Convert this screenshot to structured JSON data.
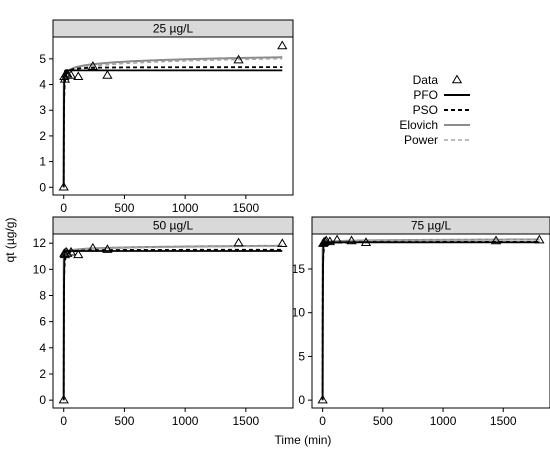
{
  "figure": {
    "xlabel": "Time (min)",
    "ylabel": "qt (µg/g)"
  },
  "legend": {
    "items": [
      {
        "label": "Data",
        "style": "triangle"
      },
      {
        "label": "PFO",
        "style": "solid-black"
      },
      {
        "label": "PSO",
        "style": "dashed-black"
      },
      {
        "label": "Elovich",
        "style": "solid-gray"
      },
      {
        "label": "Power",
        "style": "dashed-gray"
      }
    ]
  },
  "colors": {
    "pfo": "#000000",
    "pso": "#000000",
    "elovich": "#8c8c8c",
    "power": "#a6a6a6",
    "strip_fill": "#d9d9d9",
    "data_marker": "#000000"
  },
  "chart_data": [
    {
      "type": "scatter",
      "panel": "25 µg/L",
      "x": [
        0,
        5,
        10,
        20,
        30,
        60,
        120,
        240,
        360,
        1440,
        1800
      ],
      "y": [
        0,
        4.3,
        4.2,
        4.4,
        4.4,
        4.35,
        4.3,
        4.7,
        4.35,
        4.95,
        5.5
      ],
      "xlim": [
        -80,
        1880
      ],
      "ylim": [
        -0.3,
        5.85
      ],
      "xticks": [
        0,
        500,
        1000,
        1500
      ],
      "yticks": [
        0,
        1,
        2,
        3,
        4,
        5
      ],
      "models": {
        "PFO": {
          "qe": 4.55,
          "k": 0.5
        },
        "PSO": {
          "qe": 4.68,
          "k": 0.15
        },
        "Elovich": {
          "a": 4.05,
          "b": 0.135
        },
        "Power": {
          "a": 4.0,
          "b": 0.03
        }
      },
      "show_x_tick_labels": true
    },
    {
      "type": "scatter",
      "panel": "50 µg/L",
      "x": [
        0,
        5,
        10,
        20,
        30,
        60,
        120,
        240,
        360,
        1440,
        1800
      ],
      "y": [
        0,
        11.2,
        11.1,
        11.3,
        11.2,
        11.3,
        11.1,
        11.6,
        11.5,
        12.0,
        11.95
      ],
      "xlim": [
        -80,
        1880
      ],
      "ylim": [
        -0.6,
        12.7
      ],
      "xticks": [
        0,
        500,
        1000,
        1500
      ],
      "yticks": [
        0,
        2,
        4,
        6,
        8,
        10,
        12
      ],
      "models": {
        "PFO": {
          "qe": 11.4,
          "k": 0.5
        },
        "PSO": {
          "qe": 11.5,
          "k": 0.1
        },
        "Elovich": {
          "a": 11.05,
          "b": 0.1
        },
        "Power": {
          "a": 11.0,
          "b": 0.009
        }
      },
      "show_x_tick_labels": true
    },
    {
      "type": "scatter",
      "panel": "75 µg/L",
      "x": [
        0,
        5,
        10,
        20,
        30,
        60,
        120,
        240,
        360,
        1440,
        1800
      ],
      "y": [
        0,
        17.9,
        18.0,
        18.1,
        18.2,
        18.1,
        18.3,
        18.2,
        18.0,
        18.2,
        18.3
      ],
      "xlim": [
        -80,
        1880
      ],
      "ylim": [
        -0.9,
        19.0
      ],
      "xticks": [
        0,
        500,
        1000,
        1500
      ],
      "yticks": [
        0,
        5,
        10,
        15
      ],
      "models": {
        "PFO": {
          "qe": 18.05,
          "k": 0.5
        },
        "PSO": {
          "qe": 18.1,
          "k": 0.1
        },
        "Elovich": {
          "a": 17.85,
          "b": 0.07
        },
        "Power": {
          "a": 17.8,
          "b": 0.004
        }
      },
      "show_x_tick_labels": true
    }
  ]
}
